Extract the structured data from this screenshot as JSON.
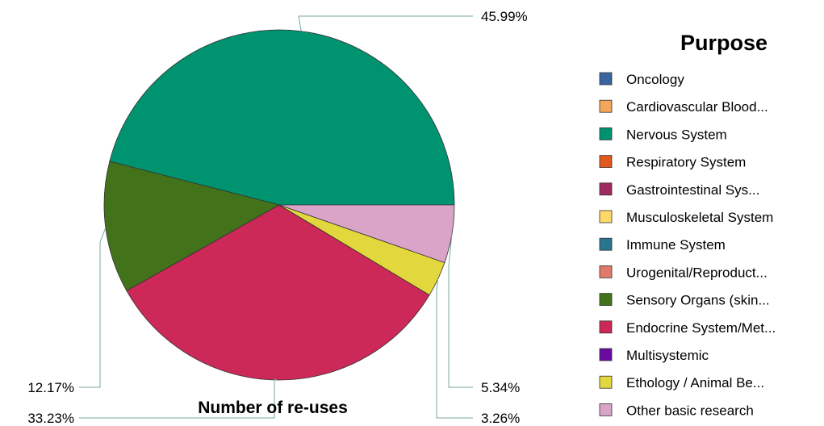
{
  "chart_data": {
    "type": "pie",
    "title": "Number of re-uses",
    "legend": {
      "title": "Purpose",
      "placement": "right",
      "entries": [
        {
          "label": "Oncology",
          "color": "#3a64a0"
        },
        {
          "label": "Cardiovascular Blood...",
          "color": "#f4a65a"
        },
        {
          "label": "Nervous System",
          "color": "#009370"
        },
        {
          "label": "Respiratory System",
          "color": "#e05a1e"
        },
        {
          "label": "Gastrointestinal Sys...",
          "color": "#9e2a5e"
        },
        {
          "label": "Musculoskeletal System",
          "color": "#ffd86a"
        },
        {
          "label": "Immune System",
          "color": "#2a7690"
        },
        {
          "label": "Urogenital/Reproduct...",
          "color": "#e07a6a"
        },
        {
          "label": "Sensory Organs (skin...",
          "color": "#42731a"
        },
        {
          "label": "Endocrine System/Met...",
          "color": "#cc2858"
        },
        {
          "label": "Multisystemic",
          "color": "#6a0aa0"
        },
        {
          "label": "Ethology / Animal Be...",
          "color": "#e2d83e"
        },
        {
          "label": "Other basic research",
          "color": "#daa4c8"
        }
      ]
    },
    "slices": [
      {
        "category": "Nervous System",
        "value": 45.99,
        "label": "45.99%",
        "color": "#009370"
      },
      {
        "category": "Sensory Organs (skin...",
        "value": 12.17,
        "label": "12.17%",
        "color": "#42731a"
      },
      {
        "category": "Endocrine System/Met...",
        "value": 33.23,
        "label": "33.23%",
        "color": "#cc2858"
      },
      {
        "category": "Ethology / Animal Be...",
        "value": 3.26,
        "label": "3.26%",
        "color": "#e2d83e"
      },
      {
        "category": "Other basic research",
        "value": 5.34,
        "label": "5.34%",
        "color": "#daa4c8"
      }
    ]
  }
}
